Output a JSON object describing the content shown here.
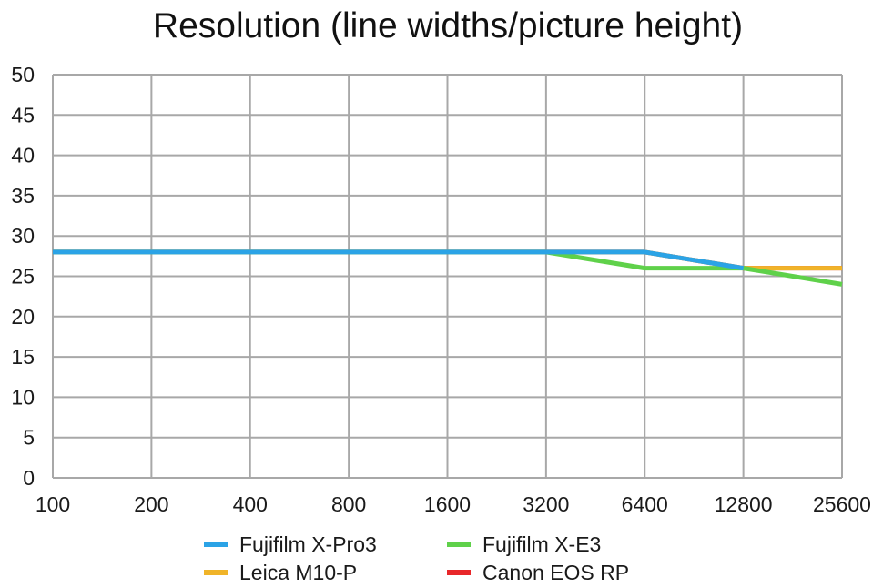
{
  "chart_data": {
    "type": "line",
    "title": "Resolution (line widths/picture height)",
    "xlabel": "",
    "ylabel": "",
    "categories": [
      "100",
      "200",
      "400",
      "800",
      "1600",
      "3200",
      "6400",
      "12800",
      "25600"
    ],
    "ylim": [
      0,
      50
    ],
    "yticks": [
      0,
      5,
      10,
      15,
      20,
      25,
      30,
      35,
      40,
      45,
      50
    ],
    "grid": true,
    "legend_position": "bottom",
    "series": [
      {
        "name": "Canon EOS RP",
        "color": "#e8272a",
        "values": [
          28,
          28,
          28,
          28,
          28,
          28,
          28,
          26,
          26
        ]
      },
      {
        "name": "Leica M10-P",
        "color": "#f0b429",
        "values": [
          28,
          28,
          28,
          28,
          28,
          28,
          28,
          26,
          26
        ]
      },
      {
        "name": "Fujifilm X-E3",
        "color": "#5fd14a",
        "values": [
          28,
          28,
          28,
          28,
          28,
          28,
          26,
          26,
          24
        ]
      },
      {
        "name": "Fujifilm X-Pro3",
        "color": "#2ba3e6",
        "values": [
          28,
          28,
          28,
          28,
          28,
          28,
          28,
          26,
          null
        ]
      }
    ],
    "legend": [
      {
        "name": "Fujifilm X-Pro3",
        "color": "#2ba3e6"
      },
      {
        "name": "Fujifilm X-E3",
        "color": "#5fd14a"
      },
      {
        "name": "Leica M10-P",
        "color": "#f0b429"
      },
      {
        "name": "Canon EOS RP",
        "color": "#e8272a"
      }
    ]
  }
}
